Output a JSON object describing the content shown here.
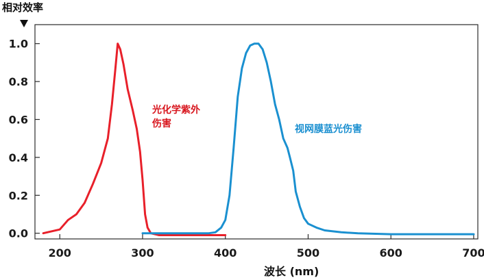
{
  "chart_data": {
    "type": "line",
    "ylabel": "相对效率",
    "xlabel": "波长 (nm)",
    "xlim": [
      170,
      705
    ],
    "ylim": [
      -0.03,
      1.1
    ],
    "x_ticks": [
      200,
      300,
      400,
      500,
      600,
      700
    ],
    "y_ticks": [
      0.0,
      0.2,
      0.4,
      0.6,
      0.8,
      1.0
    ],
    "y_tick_labels": [
      "0.0",
      "0.2",
      "0.4",
      "0.6",
      "0.8",
      "1.0"
    ],
    "grid": false,
    "series": [
      {
        "name": "光化学紫外伤害",
        "color": "#e8202a",
        "points": [
          [
            180,
            0.0
          ],
          [
            190,
            0.01
          ],
          [
            200,
            0.02
          ],
          [
            210,
            0.07
          ],
          [
            220,
            0.1
          ],
          [
            230,
            0.16
          ],
          [
            240,
            0.26
          ],
          [
            250,
            0.37
          ],
          [
            258,
            0.5
          ],
          [
            263,
            0.68
          ],
          [
            267,
            0.86
          ],
          [
            270,
            1.0
          ],
          [
            273,
            0.97
          ],
          [
            277,
            0.89
          ],
          [
            282,
            0.76
          ],
          [
            288,
            0.65
          ],
          [
            293,
            0.55
          ],
          [
            297,
            0.43
          ],
          [
            300,
            0.28
          ],
          [
            303,
            0.1
          ],
          [
            306,
            0.03
          ],
          [
            310,
            0.0
          ],
          [
            320,
            -0.01
          ],
          [
            400,
            -0.01
          ]
        ]
      },
      {
        "name": "视网膜蓝光伤害",
        "color": "#1a90d0",
        "points": [
          [
            300,
            0.0
          ],
          [
            350,
            0.0
          ],
          [
            380,
            0.0
          ],
          [
            388,
            0.005
          ],
          [
            395,
            0.03
          ],
          [
            400,
            0.07
          ],
          [
            405,
            0.2
          ],
          [
            410,
            0.45
          ],
          [
            415,
            0.72
          ],
          [
            420,
            0.87
          ],
          [
            425,
            0.95
          ],
          [
            430,
            0.99
          ],
          [
            435,
            1.0
          ],
          [
            440,
            1.0
          ],
          [
            445,
            0.97
          ],
          [
            450,
            0.9
          ],
          [
            455,
            0.8
          ],
          [
            460,
            0.68
          ],
          [
            465,
            0.6
          ],
          [
            470,
            0.5
          ],
          [
            475,
            0.45
          ],
          [
            478,
            0.4
          ],
          [
            482,
            0.33
          ],
          [
            485,
            0.22
          ],
          [
            490,
            0.14
          ],
          [
            495,
            0.08
          ],
          [
            500,
            0.05
          ],
          [
            510,
            0.03
          ],
          [
            520,
            0.015
          ],
          [
            540,
            0.005
          ],
          [
            560,
            0.0
          ],
          [
            600,
            -0.005
          ],
          [
            650,
            -0.005
          ],
          [
            700,
            -0.005
          ]
        ]
      }
    ],
    "annotations": [
      {
        "lines": [
          "光化学紫外",
          "伤害"
        ],
        "color": "#d8171f"
      },
      {
        "lines": [
          "视网膜蓝光伤害"
        ],
        "color": "#1a8fd0"
      }
    ]
  }
}
